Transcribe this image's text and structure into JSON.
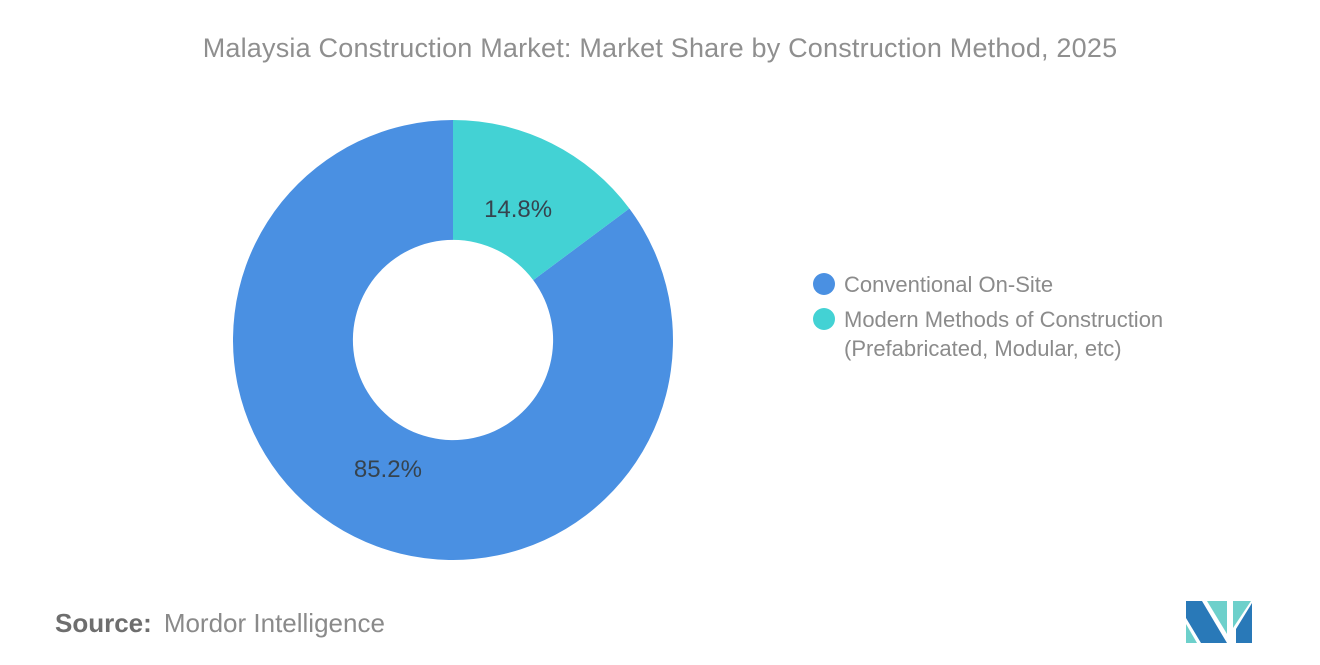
{
  "title": "Malaysia Construction Market: Market Share by Construction Method, 2025",
  "legend": {
    "items": [
      {
        "label": "Conventional On-Site",
        "color": "#4A90E2"
      },
      {
        "label": "Modern Methods of Construction (Prefabricated, Modular, etc)",
        "color": "#43D2D4"
      }
    ]
  },
  "chart_data": {
    "type": "pie",
    "subtype": "donut",
    "title": "Malaysia Construction Market: Market Share by Construction Method, 2025",
    "categories": [
      "Conventional On-Site",
      "Modern Methods of Construction (Prefabricated, Modular, etc)"
    ],
    "values": [
      85.2,
      14.8
    ],
    "unit": "%",
    "labels": [
      "85.2%",
      "14.8%"
    ],
    "colors": [
      "#4A90E2",
      "#43D2D4"
    ],
    "slice_ids": [
      "conventional-on-site",
      "modern-methods-of-construction"
    ],
    "start_angle_deg": -90,
    "direction": "counterclockwise",
    "inner_radius_ratio": 0.455,
    "label_radius_ratio": 0.66,
    "label_color": "#36434E",
    "legend_position": "right",
    "grid": false
  },
  "source": {
    "label": "Source:",
    "value": "Mordor Intelligence"
  },
  "logo": {
    "name": "Mordor Intelligence logo",
    "blue": "#2979B8",
    "teal": "#6DD0CB"
  }
}
